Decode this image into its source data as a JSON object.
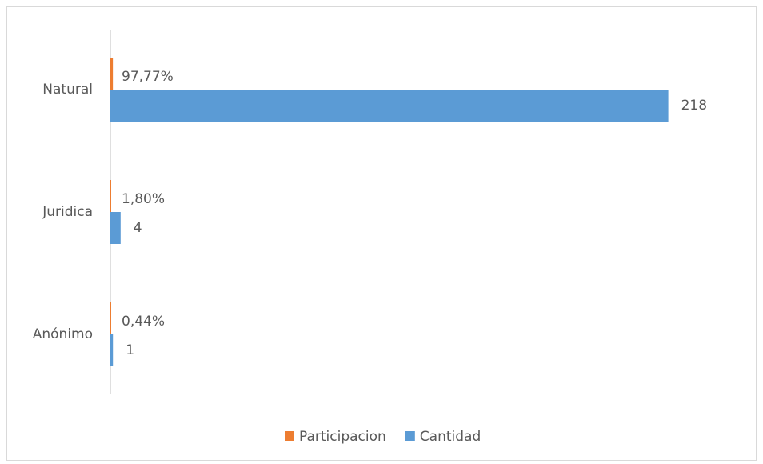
{
  "chart_data": {
    "type": "hbar",
    "categories": [
      "Natural",
      "Juridica",
      "Anónimo"
    ],
    "series": [
      {
        "name": "Participacion",
        "color": "#ed7d31",
        "values": [
          0.9777,
          0.018,
          0.0044
        ],
        "value_labels": [
          "97,77%",
          "1,80%",
          "0,44%"
        ]
      },
      {
        "name": "Cantidad",
        "color": "#5b9bd5",
        "values": [
          218,
          4,
          1
        ]
      }
    ],
    "xlim": [
      0,
      250
    ],
    "legend": "bottom"
  }
}
